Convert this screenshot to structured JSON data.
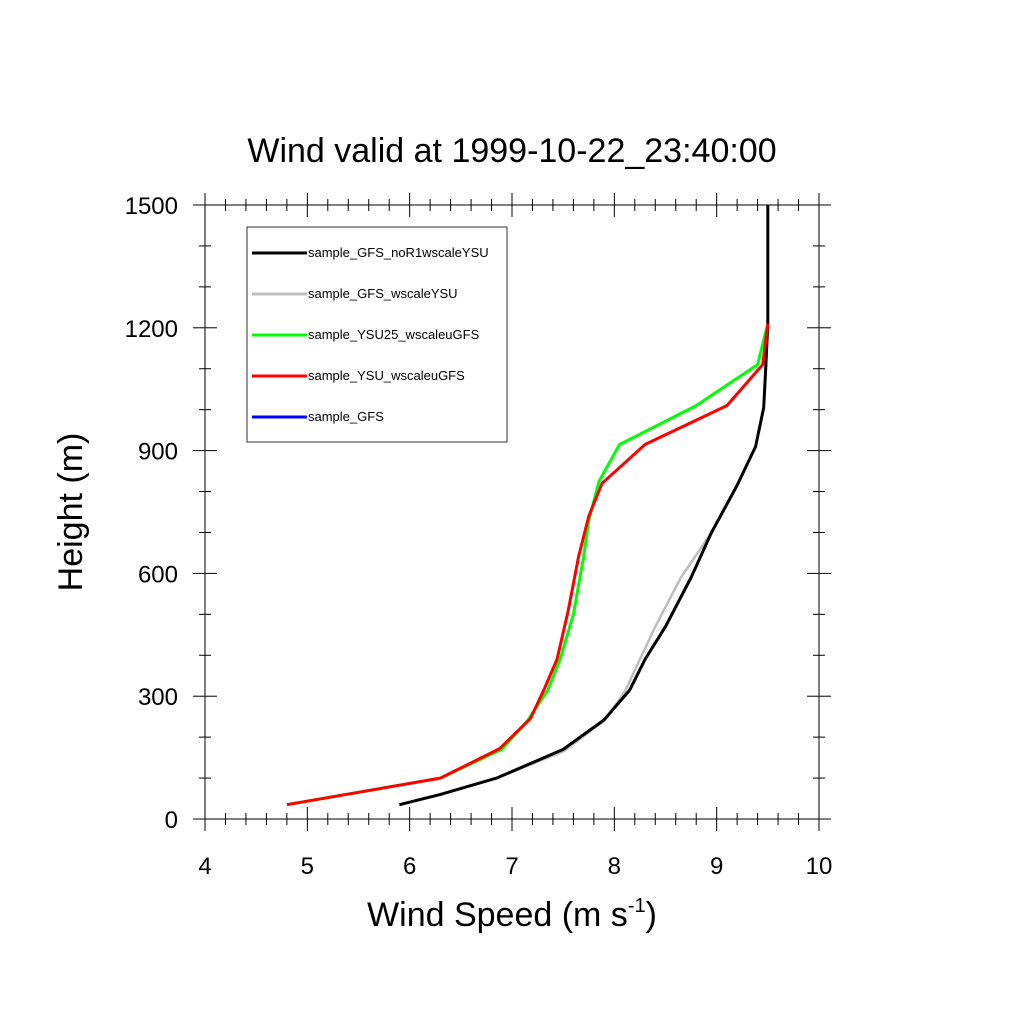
{
  "chart_data": {
    "type": "line",
    "title": "Wind valid at 1999-10-22_23:40:00",
    "xlabel": "Wind Speed (m s",
    "xlabel_sup": "-1",
    "xlabel_close": ")",
    "ylabel": "Height (m)",
    "xlim": [
      4,
      10
    ],
    "ylim": [
      0,
      1500
    ],
    "xticks": [
      4,
      5,
      6,
      7,
      8,
      9,
      10
    ],
    "yticks": [
      0,
      300,
      600,
      900,
      1200,
      1500
    ],
    "grid": false,
    "legend_position": "top-left",
    "series": [
      {
        "name": "sample_GFS_noR1wscaleYSU",
        "color": "#000000",
        "points": [
          [
            5.9,
            35
          ],
          [
            6.3,
            60
          ],
          [
            6.85,
            100
          ],
          [
            7.5,
            170
          ],
          [
            7.9,
            242
          ],
          [
            8.15,
            315
          ],
          [
            8.3,
            390
          ],
          [
            8.5,
            470
          ],
          [
            8.75,
            590
          ],
          [
            8.95,
            700
          ],
          [
            9.2,
            815
          ],
          [
            9.38,
            910
          ],
          [
            9.46,
            1005
          ],
          [
            9.48,
            1105
          ],
          [
            9.5,
            1210
          ],
          [
            9.5,
            1500
          ]
        ]
      },
      {
        "name": "sample_GFS_wscaleYSU",
        "color": "#bdbdbd",
        "points": [
          [
            5.9,
            35
          ],
          [
            6.3,
            60
          ],
          [
            6.85,
            100
          ],
          [
            7.5,
            165
          ],
          [
            7.9,
            240
          ],
          [
            8.1,
            310
          ],
          [
            8.25,
            390
          ],
          [
            8.4,
            470
          ],
          [
            8.65,
            590
          ],
          [
            8.95,
            700
          ],
          [
            9.2,
            815
          ],
          [
            9.38,
            910
          ],
          [
            9.46,
            1005
          ],
          [
            9.48,
            1105
          ],
          [
            9.5,
            1210
          ],
          [
            9.5,
            1500
          ]
        ]
      },
      {
        "name": "sample_YSU25_wscaleuGFS",
        "color": "#00ff00",
        "points": [
          [
            4.8,
            35
          ],
          [
            6.3,
            100
          ],
          [
            6.9,
            170
          ],
          [
            7.15,
            240
          ],
          [
            7.35,
            315
          ],
          [
            7.47,
            390
          ],
          [
            7.6,
            500
          ],
          [
            7.7,
            640
          ],
          [
            7.75,
            730
          ],
          [
            7.85,
            825
          ],
          [
            8.05,
            915
          ],
          [
            8.8,
            1010
          ],
          [
            9.4,
            1110
          ],
          [
            9.5,
            1210
          ]
        ]
      },
      {
        "name": "sample_YSU_wscaleuGFS",
        "color": "#ff0000",
        "points": [
          [
            4.8,
            35
          ],
          [
            6.3,
            100
          ],
          [
            6.88,
            172
          ],
          [
            7.18,
            245
          ],
          [
            7.32,
            320
          ],
          [
            7.44,
            390
          ],
          [
            7.55,
            510
          ],
          [
            7.65,
            640
          ],
          [
            7.75,
            740
          ],
          [
            7.88,
            820
          ],
          [
            8.3,
            915
          ],
          [
            9.1,
            1010
          ],
          [
            9.45,
            1110
          ],
          [
            9.5,
            1210
          ]
        ]
      },
      {
        "name": "sample_GFS",
        "color": "#0000ff",
        "points": []
      }
    ]
  }
}
